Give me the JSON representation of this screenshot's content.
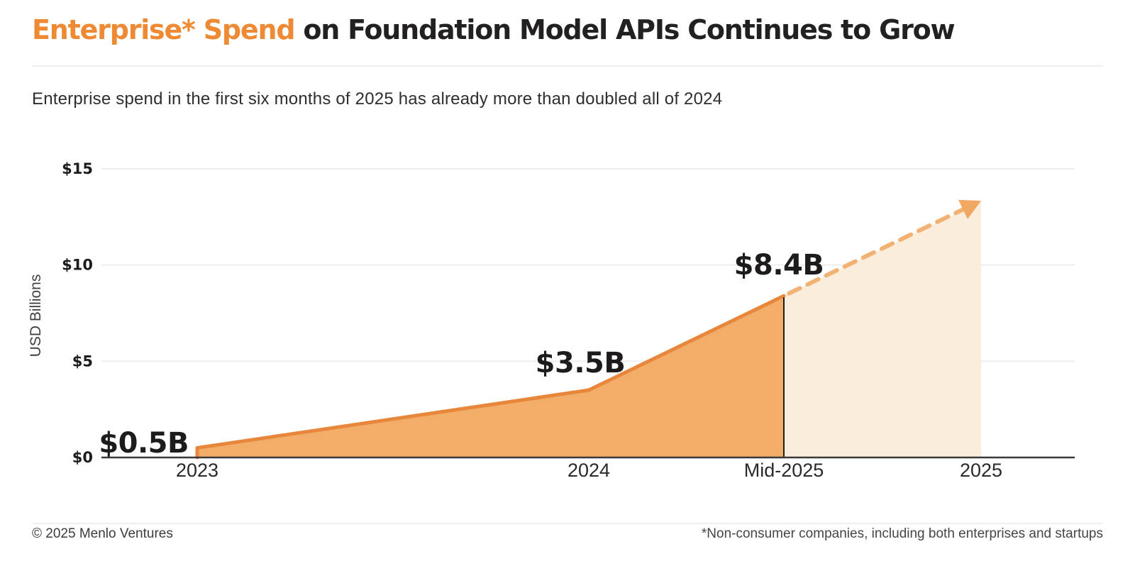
{
  "header": {
    "title_highlight": "Enterprise* Spend",
    "title_rest": " on Foundation Model APIs Continues to Grow",
    "subtitle": "Enterprise spend in the first six months of 2025 has already more than doubled all of 2024"
  },
  "footer": {
    "copyright": "© 2025 Menlo Ventures",
    "footnote": "*Non-consumer companies, including both enterprises and startups"
  },
  "colors": {
    "accent_orange": "#EE8A33",
    "line_actual": "#E8863B",
    "area_actual": "#F2AD68",
    "line_projected": "#F2B273",
    "area_projected": "#FAEDDC",
    "arrowhead": "#F0A863",
    "gridline": "#EDEDED",
    "axis_line": "#3A3A3A",
    "divider_line": "#1F1F1F",
    "text_dark": "#232021"
  },
  "chart_data": {
    "type": "area",
    "title": "Enterprise* Spend on Foundation Model APIs Continues to Grow",
    "subtitle": "Enterprise spend in the first six months of 2025 has already more than doubled all of 2024",
    "categories": [
      "2023",
      "2024",
      "Mid-2025",
      "2025"
    ],
    "values": [
      0.5,
      3.5,
      8.4,
      13.3
    ],
    "value_labels": [
      "$0.5B",
      "$3.5B",
      "$8.4B"
    ],
    "segments": {
      "actual_indices": [
        0,
        1,
        2
      ],
      "projected_indices": [
        2,
        3
      ],
      "note": "2025 value unlabeled in chart; ~13.3 estimated from gridlines, shown as dashed projection with arrow"
    },
    "ylabel": "USD Billions",
    "ylim": [
      0,
      15
    ],
    "yticks": [
      0,
      5,
      10,
      15
    ],
    "ytick_labels": [
      "$0",
      "$5",
      "$10",
      "$15"
    ],
    "grid": "horizontal",
    "legend": "none"
  }
}
